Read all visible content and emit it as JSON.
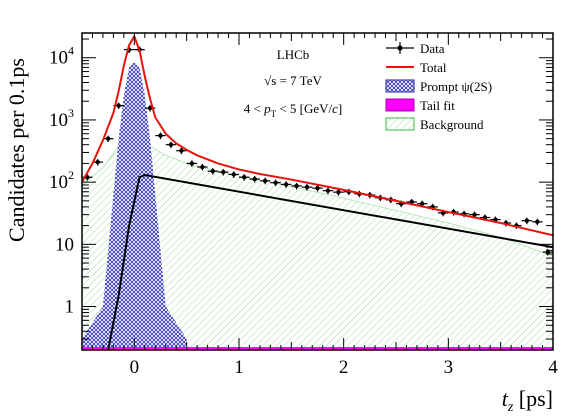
{
  "chart_data": {
    "type": "scatter",
    "title": "",
    "xlabel_symbol": "t",
    "xlabel_sub": "z",
    "xlabel_unit": " [ps]",
    "ylabel": "Candidates per  0.1ps",
    "y_scale": "log",
    "xlim": [
      -0.5,
      4.0
    ],
    "ylim": [
      0.2,
      25000
    ],
    "x_ticks": [
      {
        "v": 0,
        "label": "0"
      },
      {
        "v": 1,
        "label": "1"
      },
      {
        "v": 2,
        "label": "2"
      },
      {
        "v": 3,
        "label": "3"
      },
      {
        "v": 4,
        "label": "4"
      }
    ],
    "y_ticks": [
      {
        "v": 1,
        "label": "1",
        "base": "1",
        "exp": ""
      },
      {
        "v": 10,
        "label": "10",
        "base": "10",
        "exp": ""
      },
      {
        "v": 100,
        "label": "10",
        "base": "10",
        "exp": "2"
      },
      {
        "v": 1000,
        "label": "10",
        "base": "10",
        "exp": "3"
      },
      {
        "v": 10000,
        "label": "10",
        "base": "10",
        "exp": "4"
      }
    ],
    "annotations": {
      "experiment": "LHCb",
      "energy": "√s = 7 TeV",
      "pt_range": "4 < p_T < 5 [GeV/c]"
    },
    "legend": {
      "placement": "top-right",
      "entries": [
        {
          "name": "Data",
          "kind": "points"
        },
        {
          "name": "Total",
          "kind": "line",
          "color": "#e8140a"
        },
        {
          "name": "Prompt ψ(2S)",
          "kind": "hatch",
          "color": "#1a1aa8"
        },
        {
          "name": "Tail fit",
          "kind": "fill",
          "color": "#ff00ff"
        },
        {
          "name": "Background",
          "kind": "hatch",
          "color": "#33bb33"
        }
      ]
    },
    "data_points": {
      "x": [
        -0.45,
        -0.35,
        -0.25,
        -0.15,
        -0.05,
        0.05,
        0.15,
        0.25,
        0.35,
        0.45,
        0.55,
        0.65,
        0.75,
        0.85,
        0.95,
        1.05,
        1.15,
        1.25,
        1.35,
        1.45,
        1.55,
        1.65,
        1.75,
        1.85,
        1.95,
        2.05,
        2.15,
        2.25,
        2.35,
        2.45,
        2.55,
        2.65,
        2.75,
        2.85,
        2.95,
        3.05,
        3.15,
        3.25,
        3.35,
        3.45,
        3.55,
        3.65,
        3.75,
        3.85,
        3.95
      ],
      "y": [
        120,
        210,
        500,
        1700,
        13500,
        13500,
        1550,
        560,
        400,
        320,
        200,
        175,
        150,
        145,
        133,
        120,
        112,
        105,
        98,
        92,
        87,
        83,
        80,
        73,
        69,
        70,
        65,
        62,
        56,
        52,
        45,
        48,
        45,
        40,
        32,
        33,
        31,
        30,
        27,
        25,
        22,
        20,
        24,
        23,
        7.5
      ],
      "yerr_rel": 0.12
    },
    "total_curve": {
      "x": [
        -0.5,
        -0.4,
        -0.3,
        -0.2,
        -0.15,
        -0.1,
        -0.05,
        0.0,
        0.05,
        0.1,
        0.15,
        0.2,
        0.3,
        0.4,
        0.5,
        0.6,
        0.8,
        1.0,
        1.2,
        1.5,
        2.0,
        2.5,
        3.0,
        3.5,
        4.0
      ],
      "y": [
        100,
        200,
        470,
        1300,
        2900,
        7500,
        16000,
        22000,
        13000,
        5000,
        2200,
        1100,
        600,
        420,
        330,
        270,
        200,
        160,
        135,
        110,
        75,
        50,
        33,
        22,
        14
      ]
    },
    "prompt_component": {
      "x": [
        -0.5,
        -0.3,
        -0.15,
        -0.1,
        -0.05,
        0.0,
        0.05,
        0.1,
        0.15,
        0.3,
        0.5
      ],
      "y": [
        0.3,
        1,
        500,
        2500,
        7000,
        8500,
        7000,
        2500,
        500,
        1,
        0.3
      ]
    },
    "tail_component": {
      "x": [
        -0.5,
        4.0
      ],
      "y": [
        0.21,
        0.21
      ]
    },
    "background_component": {
      "x": [
        -0.5,
        -0.3,
        -0.15,
        -0.05,
        0.0,
        0.05,
        0.15,
        0.3,
        0.5,
        0.8,
        1.0,
        1.5,
        2.0,
        2.5,
        3.0,
        3.5,
        4.0
      ],
      "y": [
        90,
        170,
        380,
        520,
        540,
        520,
        380,
        270,
        200,
        150,
        125,
        85,
        55,
        35,
        22,
        13,
        6.5
      ]
    },
    "signal_line": {
      "x": [
        -0.25,
        -0.15,
        -0.05,
        0.05,
        0.1,
        4.0
      ],
      "y": [
        0.2,
        1.5,
        20,
        120,
        130,
        9
      ]
    }
  }
}
